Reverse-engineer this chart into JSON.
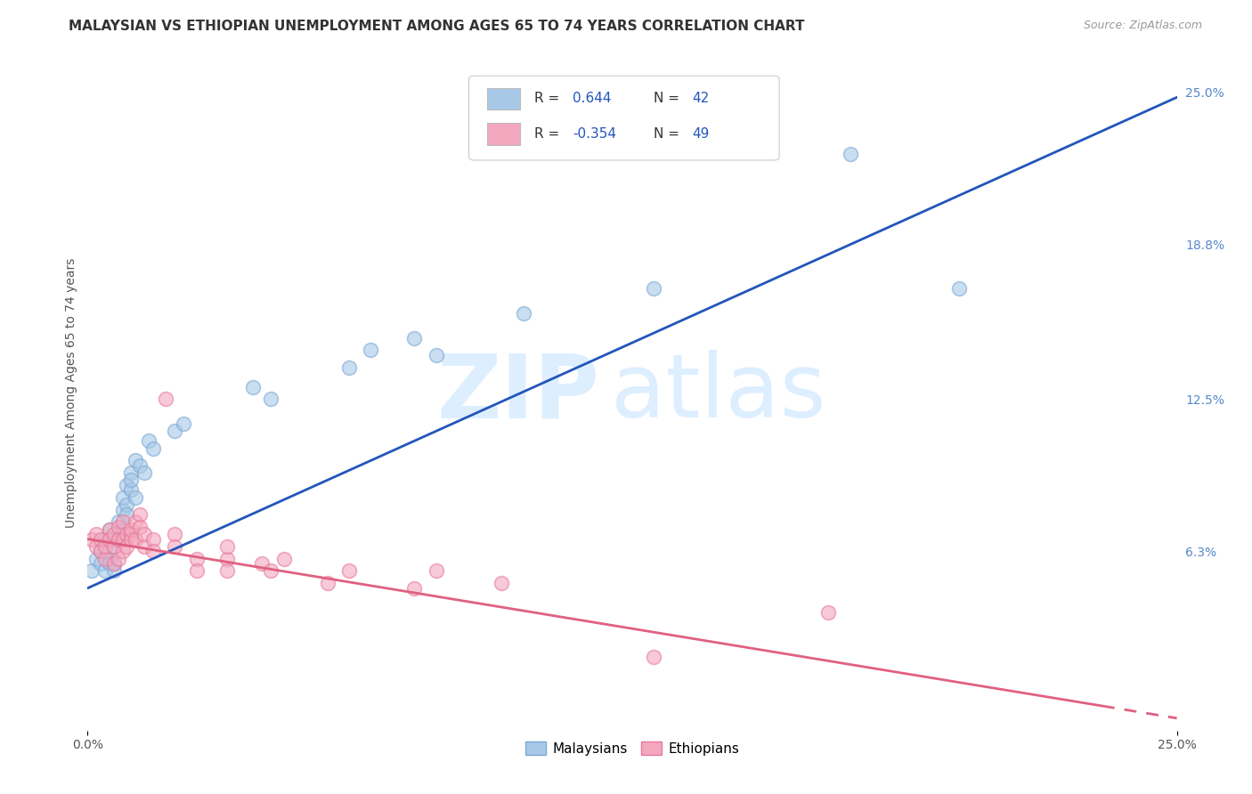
{
  "title": "MALAYSIAN VS ETHIOPIAN UNEMPLOYMENT AMONG AGES 65 TO 74 YEARS CORRELATION CHART",
  "source": "Source: ZipAtlas.com",
  "ylabel": "Unemployment Among Ages 65 to 74 years",
  "xlim": [
    0.0,
    0.25
  ],
  "ylim": [
    -0.01,
    0.265
  ],
  "ytick_labels_right": [
    "25.0%",
    "18.8%",
    "12.5%",
    "6.3%"
  ],
  "ytick_values_right": [
    0.25,
    0.188,
    0.125,
    0.063
  ],
  "malaysian_color": "#a8c8e8",
  "ethiopian_color": "#f4a8c0",
  "malaysian_edge_color": "#7aA8d4",
  "ethiopian_edge_color": "#e87898",
  "trendline_malaysian_color": "#2255bb",
  "trendline_ethiopian_color": "#e06080",
  "background_color": "#ffffff",
  "grid_color": "#cccccc",
  "watermark_zip": "ZIP",
  "watermark_atlas": "atlas",
  "watermark_color": "#ddeeff",
  "malaysian_points": [
    [
      0.001,
      0.055
    ],
    [
      0.002,
      0.06
    ],
    [
      0.003,
      0.058
    ],
    [
      0.003,
      0.063
    ],
    [
      0.004,
      0.055
    ],
    [
      0.004,
      0.068
    ],
    [
      0.005,
      0.072
    ],
    [
      0.005,
      0.06
    ],
    [
      0.005,
      0.058
    ],
    [
      0.006,
      0.065
    ],
    [
      0.006,
      0.058
    ],
    [
      0.006,
      0.055
    ],
    [
      0.007,
      0.068
    ],
    [
      0.007,
      0.07
    ],
    [
      0.007,
      0.075
    ],
    [
      0.008,
      0.072
    ],
    [
      0.008,
      0.08
    ],
    [
      0.008,
      0.085
    ],
    [
      0.009,
      0.082
    ],
    [
      0.009,
      0.078
    ],
    [
      0.009,
      0.09
    ],
    [
      0.01,
      0.088
    ],
    [
      0.01,
      0.095
    ],
    [
      0.01,
      0.092
    ],
    [
      0.011,
      0.1
    ],
    [
      0.011,
      0.085
    ],
    [
      0.012,
      0.098
    ],
    [
      0.013,
      0.095
    ],
    [
      0.014,
      0.108
    ],
    [
      0.015,
      0.105
    ],
    [
      0.02,
      0.112
    ],
    [
      0.022,
      0.115
    ],
    [
      0.038,
      0.13
    ],
    [
      0.042,
      0.125
    ],
    [
      0.06,
      0.138
    ],
    [
      0.065,
      0.145
    ],
    [
      0.075,
      0.15
    ],
    [
      0.08,
      0.143
    ],
    [
      0.1,
      0.16
    ],
    [
      0.13,
      0.17
    ],
    [
      0.175,
      0.225
    ],
    [
      0.2,
      0.17
    ]
  ],
  "ethiopian_points": [
    [
      0.001,
      0.068
    ],
    [
      0.002,
      0.065
    ],
    [
      0.002,
      0.07
    ],
    [
      0.003,
      0.063
    ],
    [
      0.003,
      0.068
    ],
    [
      0.004,
      0.06
    ],
    [
      0.004,
      0.065
    ],
    [
      0.005,
      0.072
    ],
    [
      0.005,
      0.068
    ],
    [
      0.006,
      0.058
    ],
    [
      0.006,
      0.065
    ],
    [
      0.006,
      0.07
    ],
    [
      0.007,
      0.073
    ],
    [
      0.007,
      0.068
    ],
    [
      0.007,
      0.06
    ],
    [
      0.008,
      0.063
    ],
    [
      0.008,
      0.068
    ],
    [
      0.008,
      0.075
    ],
    [
      0.009,
      0.07
    ],
    [
      0.009,
      0.065
    ],
    [
      0.01,
      0.07
    ],
    [
      0.01,
      0.068
    ],
    [
      0.01,
      0.072
    ],
    [
      0.011,
      0.075
    ],
    [
      0.011,
      0.068
    ],
    [
      0.012,
      0.078
    ],
    [
      0.012,
      0.073
    ],
    [
      0.013,
      0.065
    ],
    [
      0.013,
      0.07
    ],
    [
      0.015,
      0.068
    ],
    [
      0.015,
      0.063
    ],
    [
      0.018,
      0.125
    ],
    [
      0.02,
      0.07
    ],
    [
      0.02,
      0.065
    ],
    [
      0.025,
      0.06
    ],
    [
      0.025,
      0.055
    ],
    [
      0.032,
      0.06
    ],
    [
      0.032,
      0.065
    ],
    [
      0.032,
      0.055
    ],
    [
      0.04,
      0.058
    ],
    [
      0.042,
      0.055
    ],
    [
      0.045,
      0.06
    ],
    [
      0.055,
      0.05
    ],
    [
      0.06,
      0.055
    ],
    [
      0.075,
      0.048
    ],
    [
      0.08,
      0.055
    ],
    [
      0.095,
      0.05
    ],
    [
      0.13,
      0.02
    ],
    [
      0.17,
      0.038
    ]
  ],
  "mal_trendline": [
    [
      0.0,
      0.048
    ],
    [
      0.25,
      0.248
    ]
  ],
  "eth_trendline": [
    [
      0.0,
      0.068
    ],
    [
      0.25,
      -0.005
    ]
  ],
  "title_fontsize": 11,
  "source_fontsize": 9,
  "axis_fontsize": 10,
  "tick_fontsize": 10,
  "legend_r_values": [
    "0.644",
    "-0.354"
  ],
  "legend_n_values": [
    "42",
    "49"
  ],
  "legend_patch_colors": [
    "#a8c8e8",
    "#f4a8c0"
  ]
}
